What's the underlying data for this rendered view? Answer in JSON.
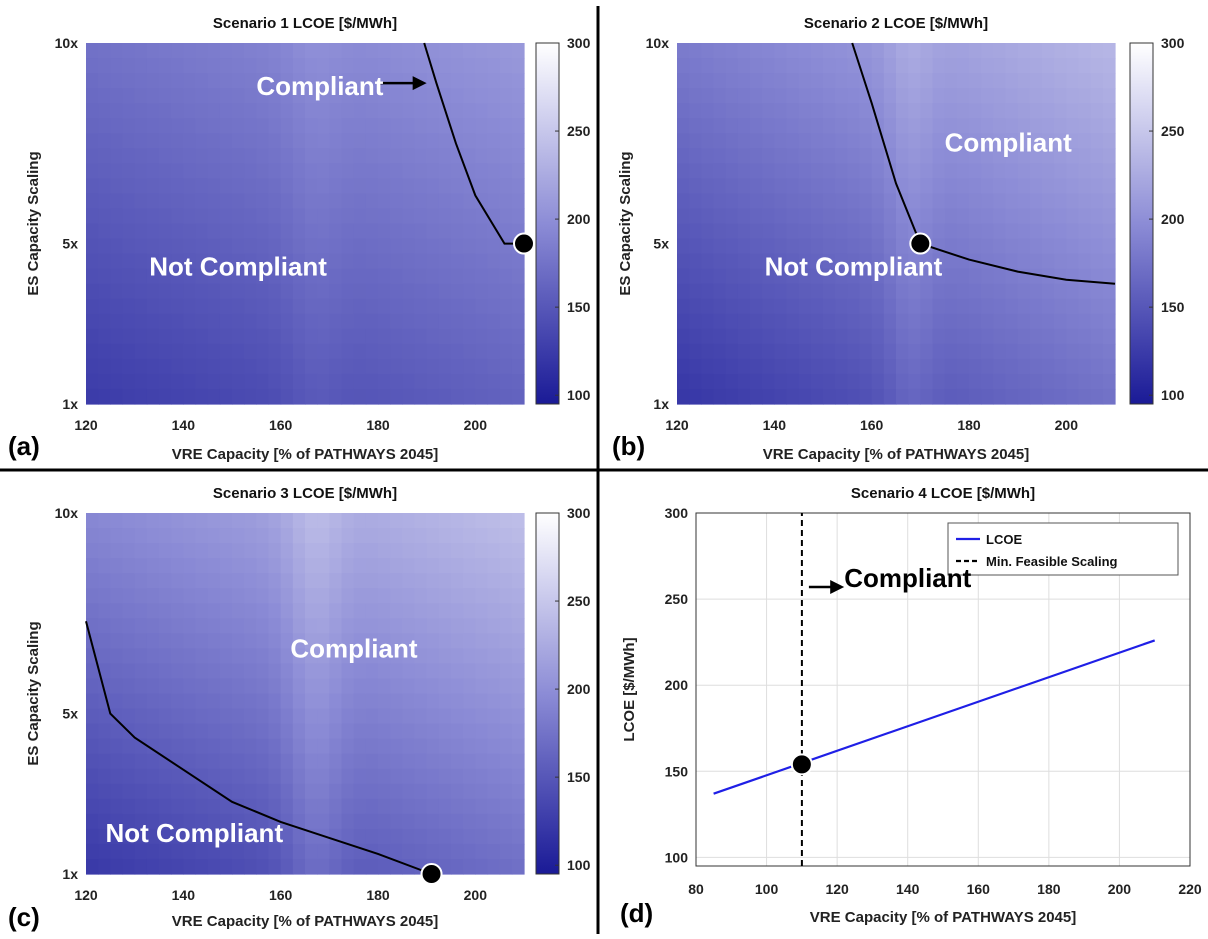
{
  "colormap": {
    "low": "#1a1a96",
    "mid": "#8c8cd6",
    "high": "#ffffff"
  },
  "colors": {
    "curve": "#000000",
    "lcoe_line": "#1f1fe6",
    "divider": "#000000",
    "grid": "#dedede"
  },
  "chart_data": [
    {
      "type": "heatmap",
      "panel": "(a)",
      "title": "Scenario 1 LCOE [$/MWh]",
      "xlabel": "VRE Capacity [% of PATHWAYS 2045]",
      "ylabel": "ES Capacity Scaling",
      "xlim": [
        120,
        210
      ],
      "ylim": [
        1,
        10
      ],
      "xticks": [
        120,
        140,
        160,
        180,
        200
      ],
      "yticks": [
        1,
        5,
        10
      ],
      "ytick_labels": [
        "1x",
        "5x",
        "10x"
      ],
      "colorbar": {
        "range": [
          95,
          300
        ],
        "ticks": [
          100,
          150,
          200,
          250,
          300
        ]
      },
      "lcoe_field": {
        "base": 165,
        "x_slope": 0.4,
        "y_slope": 5.5,
        "ridge_x": 167,
        "ridge_amp": 8,
        "ridge_width": 6
      },
      "boundary": {
        "x": [
          189.5,
          192,
          196,
          200,
          206,
          210
        ],
        "y": [
          10,
          9,
          7.5,
          6.2,
          5,
          5
        ]
      },
      "marker": {
        "x": 210,
        "y": 5
      },
      "annotations": [
        {
          "text": "Compliant",
          "x": 155,
          "y": 8.7,
          "style": "light"
        },
        {
          "text": "Not Compliant",
          "x": 133,
          "y": 4.2,
          "style": "light"
        }
      ],
      "arrow": {
        "x0": 180,
        "x1": 190,
        "y": 9.0
      },
      "grid": false
    },
    {
      "type": "heatmap",
      "panel": "(b)",
      "title": "Scenario 2 LCOE [$/MWh]",
      "xlabel": "VRE Capacity [% of PATHWAYS 2045]",
      "ylabel": "ES Capacity Scaling",
      "xlim": [
        120,
        210
      ],
      "ylim": [
        1,
        10
      ],
      "xticks": [
        120,
        140,
        160,
        180,
        200
      ],
      "yticks": [
        1,
        5,
        10
      ],
      "ytick_labels": [
        "1x",
        "5x",
        "10x"
      ],
      "colorbar": {
        "range": [
          95,
          300
        ],
        "ticks": [
          100,
          150,
          200,
          250,
          300
        ]
      },
      "lcoe_field": {
        "base": 175,
        "x_slope": 0.6,
        "y_slope": 7,
        "ridge_x": 168,
        "ridge_amp": 14,
        "ridge_width": 5
      },
      "boundary": {
        "x": [
          156,
          160,
          165,
          170,
          180,
          190,
          200,
          210
        ],
        "y": [
          10,
          8.5,
          6.5,
          5,
          4.6,
          4.3,
          4.1,
          4.0
        ]
      },
      "marker": {
        "x": 170,
        "y": 5
      },
      "annotations": [
        {
          "text": "Compliant",
          "x": 175,
          "y": 7.3,
          "style": "light"
        },
        {
          "text": "Not Compliant",
          "x": 138,
          "y": 4.2,
          "style": "light"
        }
      ],
      "grid": false
    },
    {
      "type": "heatmap",
      "panel": "(c)",
      "title": "Scenario 3 LCOE [$/MWh]",
      "xlabel": "VRE Capacity [% of PATHWAYS 2045]",
      "ylabel": "ES Capacity Scaling",
      "xlim": [
        120,
        210
      ],
      "ylim": [
        1,
        10
      ],
      "xticks": [
        120,
        140,
        160,
        180,
        200
      ],
      "yticks": [
        1,
        5,
        10
      ],
      "ytick_labels": [
        "1x",
        "5x",
        "10x"
      ],
      "colorbar": {
        "range": [
          95,
          300
        ],
        "ticks": [
          100,
          150,
          200,
          250,
          300
        ]
      },
      "lcoe_field": {
        "base": 180,
        "x_slope": 0.55,
        "y_slope": 8,
        "ridge_x": 167,
        "ridge_amp": 20,
        "ridge_width": 6
      },
      "boundary": {
        "x": [
          120,
          125,
          130,
          140,
          150,
          160,
          170,
          180,
          191
        ],
        "y": [
          7.3,
          5.0,
          4.4,
          3.6,
          2.8,
          2.3,
          1.9,
          1.5,
          1.0
        ]
      },
      "marker": {
        "x": 191,
        "y": 1
      },
      "annotations": [
        {
          "text": "Compliant",
          "x": 162,
          "y": 6.4,
          "style": "light"
        },
        {
          "text": "Not Compliant",
          "x": 124,
          "y": 1.8,
          "style": "light"
        }
      ],
      "grid": false
    },
    {
      "type": "line",
      "panel": "(d)",
      "title": "Scenario 4 LCOE [$/MWh]",
      "xlabel": "VRE Capacity [% of PATHWAYS 2045]",
      "ylabel": "LCOE [$/MWh]",
      "xlim": [
        80,
        220
      ],
      "ylim": [
        95,
        300
      ],
      "xticks": [
        80,
        100,
        120,
        140,
        160,
        180,
        200,
        220
      ],
      "yticks": [
        100,
        150,
        200,
        250,
        300
      ],
      "series": [
        {
          "name": "LCOE",
          "x": [
            85,
            210
          ],
          "y": [
            137,
            226
          ],
          "color": "#1f1fe6",
          "style": "solid"
        },
        {
          "name": "Min. Feasible Scaling",
          "x": [
            110,
            110
          ],
          "y": [
            95,
            300
          ],
          "color": "#000000",
          "style": "dashed"
        }
      ],
      "marker": {
        "x": 110,
        "y": 154
      },
      "annotations": [
        {
          "text": "Compliant",
          "x": 122,
          "y": 257,
          "style": "dark"
        }
      ],
      "arrow": {
        "x0": 112,
        "x1": 122,
        "y": 257
      },
      "legend": "top-right",
      "grid": true
    }
  ]
}
